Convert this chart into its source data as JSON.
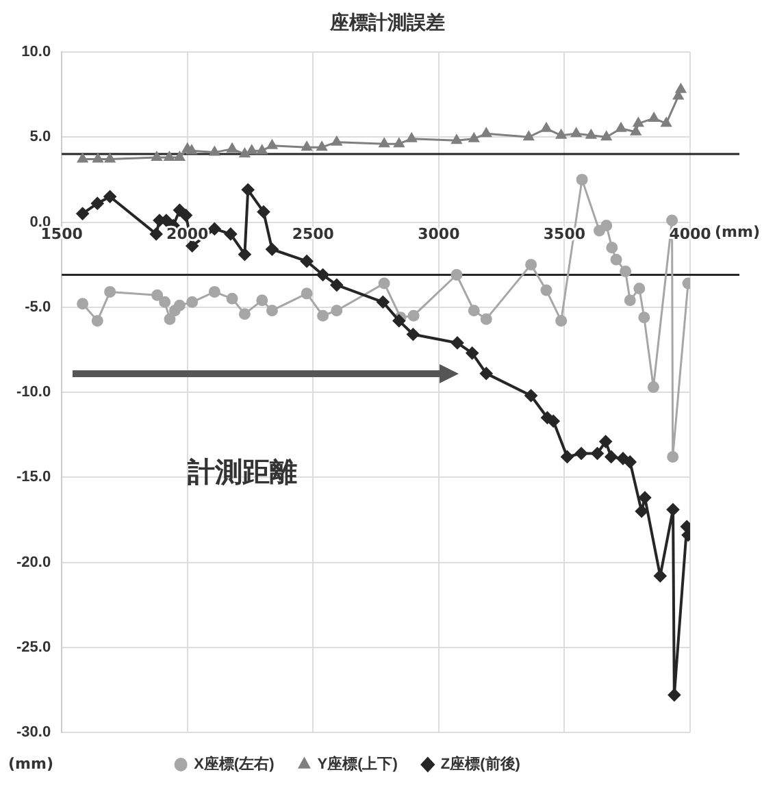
{
  "chart_data": {
    "type": "line",
    "title": "座標計測誤差",
    "xlabel": "(mm)",
    "ylabel": "(mm)",
    "xlim": [
      1500,
      4000
    ],
    "xticks": [
      1500,
      2000,
      2500,
      3000,
      3500,
      4000
    ],
    "ylim": [
      -30,
      10
    ],
    "yticks": [
      {
        "value": -30,
        "label": "-30.0"
      },
      {
        "value": -25,
        "label": "-25.0"
      },
      {
        "value": -20,
        "label": "-20.0"
      },
      {
        "value": -15,
        "label": "-15.0"
      },
      {
        "value": -10,
        "label": "-10.0"
      },
      {
        "value": -5,
        "label": "-5.0"
      },
      {
        "value": 0,
        "label": "0.0"
      },
      {
        "value": 5,
        "label": "5.0"
      },
      {
        "value": 10,
        "label": "10.0"
      }
    ],
    "grid": true,
    "legend": "bottom",
    "ref_lines": [
      {
        "axis": "y",
        "value": 4.0,
        "color": "#262626"
      },
      {
        "axis": "y",
        "value": -3.1,
        "color": "#262626"
      }
    ],
    "annotations": [
      "計測距離"
    ],
    "series": [
      {
        "name": "X座標(左右)",
        "color": "#a6a6a6",
        "marker": "circle",
        "x": [
          1583,
          1642,
          1692,
          1880,
          1910,
          1930,
          1950,
          1969,
          2019,
          2108,
          2178,
          2228,
          2297,
          2337,
          2475,
          2539,
          2594,
          2783,
          2848,
          2900,
          3071,
          3140,
          3189,
          3367,
          3428,
          3487,
          3570,
          3639,
          3667,
          3689,
          3706,
          3743,
          3761,
          3798,
          3817,
          3854,
          3928,
          3931,
          3992
        ],
        "values": [
          -4.8,
          -5.8,
          -4.1,
          -4.3,
          -4.7,
          -5.7,
          -5.2,
          -4.9,
          -4.7,
          -4.1,
          -4.5,
          -5.4,
          -4.6,
          -5.2,
          -4.2,
          -5.5,
          -5.2,
          -3.6,
          -5.6,
          -5.5,
          -3.1,
          -5.2,
          -5.7,
          -2.5,
          -4.0,
          -5.8,
          2.5,
          -0.5,
          -0.2,
          -1.5,
          -2.2,
          -2.9,
          -4.6,
          -3.9,
          -5.6,
          -9.7,
          0.1,
          -13.8,
          -3.6
        ]
      },
      {
        "name": "Y座標(上下)",
        "color": "#7f7f7f",
        "marker": "triangle",
        "x": [
          1583,
          1644,
          1692,
          1878,
          1928,
          1969,
          2000,
          2017,
          2108,
          2178,
          2228,
          2256,
          2297,
          2337,
          2475,
          2535,
          2594,
          2783,
          2842,
          2892,
          3071,
          3140,
          3189,
          3358,
          3428,
          3487,
          3547,
          3606,
          3667,
          3725,
          3784,
          3794,
          3856,
          3905,
          3953,
          3963
        ],
        "values": [
          3.7,
          3.7,
          3.7,
          3.8,
          3.8,
          3.8,
          4.3,
          4.2,
          4.1,
          4.3,
          4.0,
          4.2,
          4.2,
          4.5,
          4.4,
          4.4,
          4.7,
          4.6,
          4.6,
          4.9,
          4.8,
          4.9,
          5.2,
          5.0,
          5.5,
          5.1,
          5.2,
          5.1,
          5.0,
          5.5,
          5.3,
          5.8,
          6.1,
          5.8,
          7.4,
          7.8
        ]
      },
      {
        "name": "Z座標(前後)",
        "color": "#262626",
        "marker": "diamond",
        "x": [
          1583,
          1642,
          1692,
          1876,
          1889,
          1916,
          1944,
          1969,
          1994,
          2019,
          2108,
          2172,
          2228,
          2241,
          2303,
          2337,
          2475,
          2539,
          2594,
          2778,
          2842,
          2898,
          3074,
          3133,
          3189,
          3367,
          3432,
          3456,
          3511,
          3567,
          3631,
          3664,
          3686,
          3733,
          3761,
          3807,
          3820,
          3881,
          3932,
          3937,
          3987,
          3992
        ],
        "values": [
          0.5,
          1.1,
          1.5,
          -0.7,
          0.1,
          0.1,
          -0.2,
          0.7,
          0.4,
          -1.4,
          -0.4,
          -0.7,
          -1.9,
          1.9,
          0.6,
          -1.6,
          -2.3,
          -3.1,
          -3.7,
          -4.7,
          -5.8,
          -6.6,
          -7.1,
          -7.7,
          -8.9,
          -10.2,
          -11.5,
          -11.7,
          -13.8,
          -13.6,
          -13.6,
          -12.9,
          -13.8,
          -13.9,
          -14.1,
          -17.0,
          -16.2,
          -20.8,
          -16.9,
          -27.8,
          -17.9,
          -18.4
        ]
      }
    ]
  }
}
